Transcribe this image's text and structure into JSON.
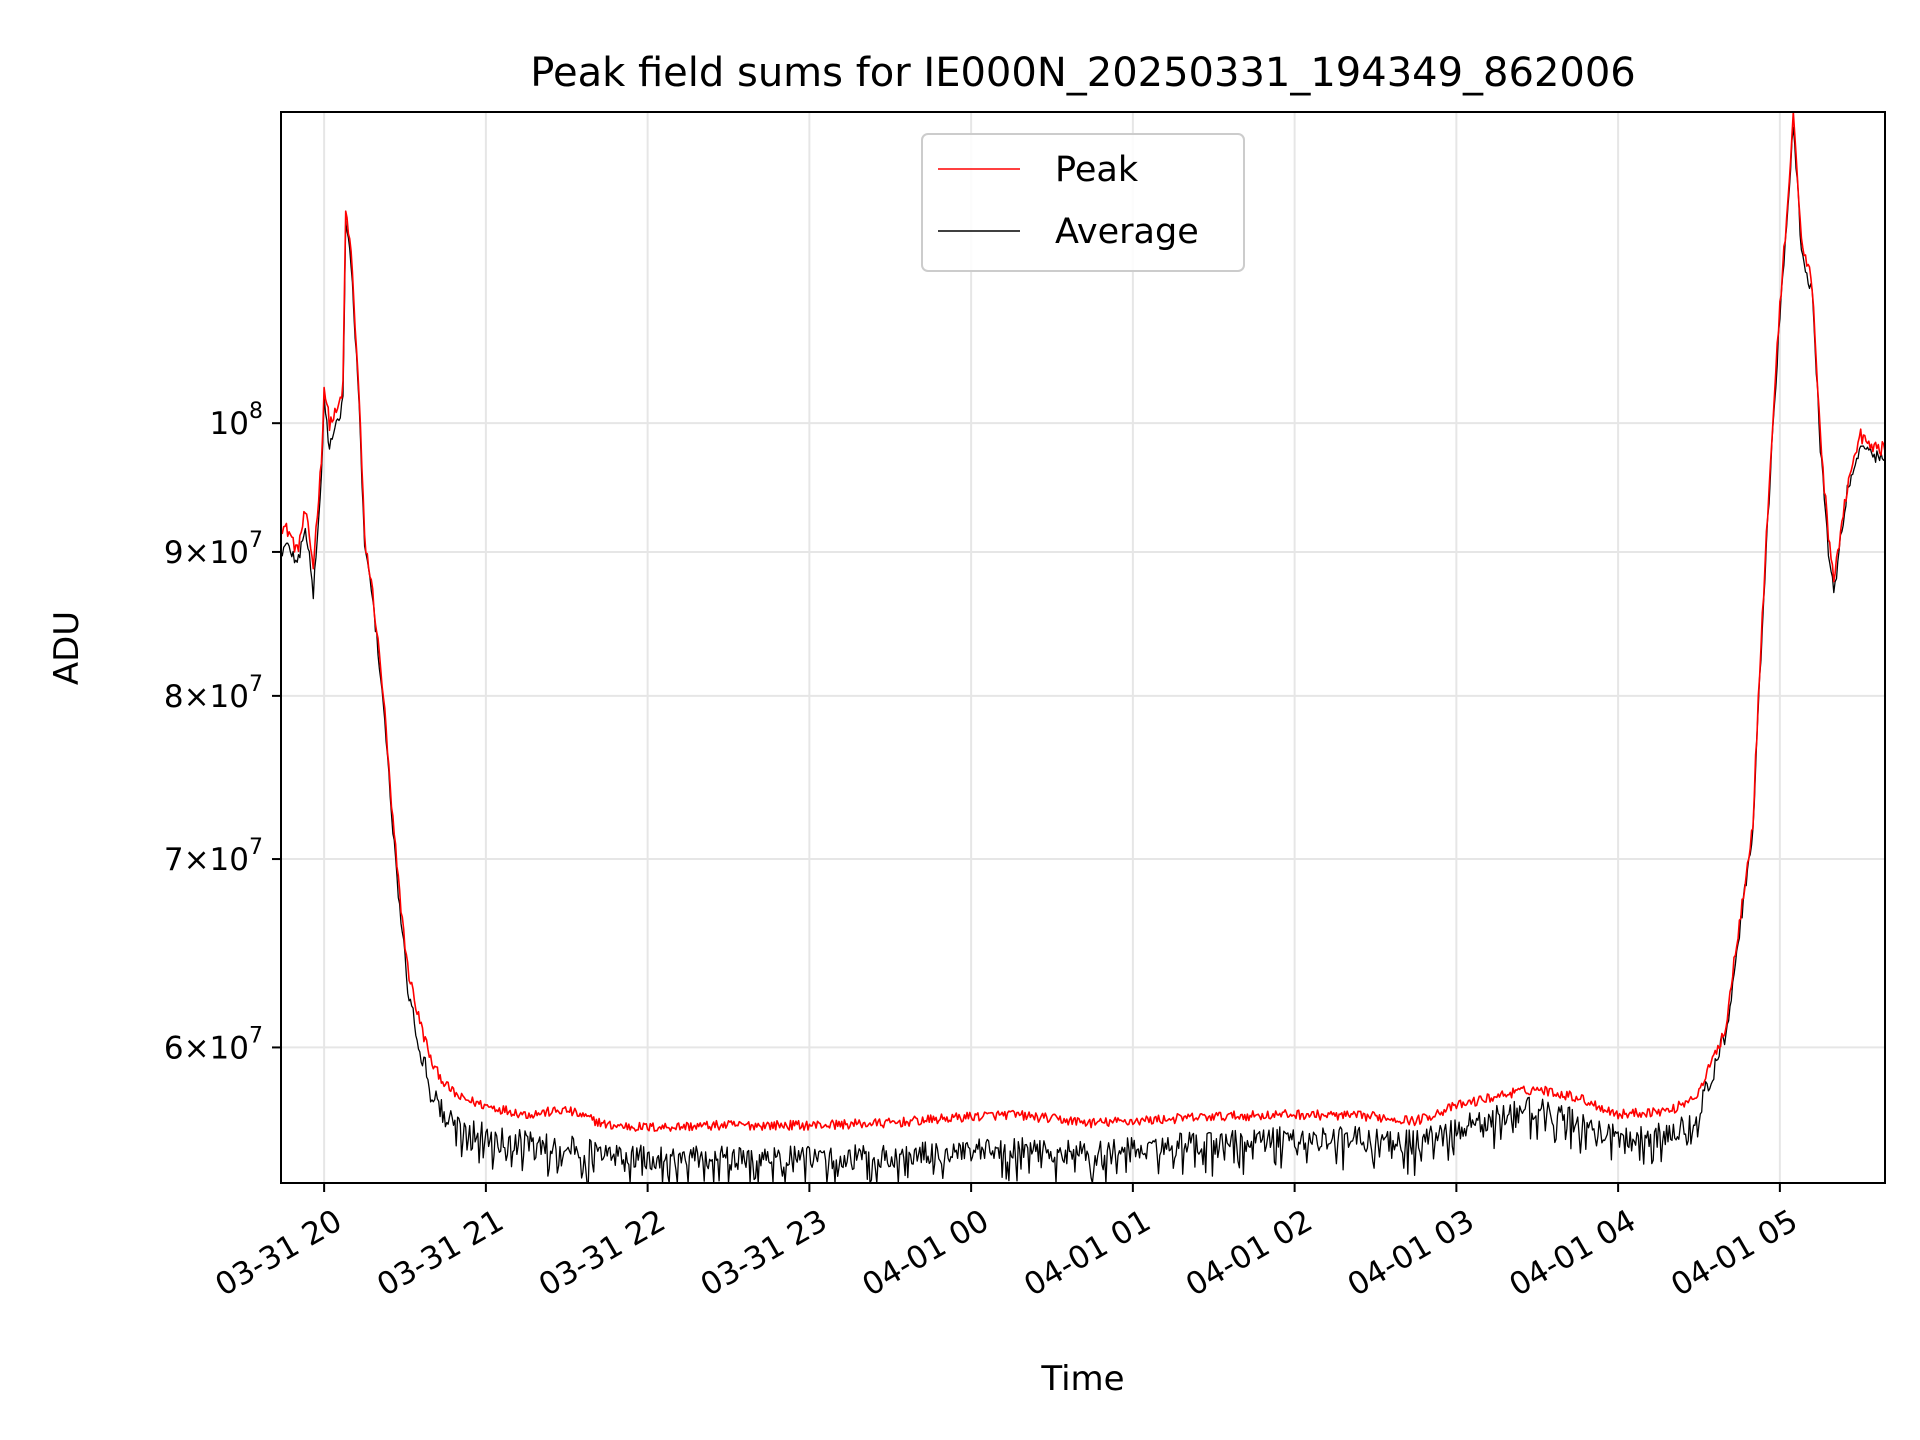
{
  "chart_data": {
    "type": "line",
    "title": "Peak field sums for IE000N_20250331_194349_862006",
    "xlabel": "Time",
    "ylabel": "ADU",
    "y_scale": "log",
    "x_range": [
      "03-31 19:44",
      "04-01 05:39"
    ],
    "ylim": [
      53700000,
      129000000
    ],
    "grid": true,
    "legend_position": "top-center",
    "x_ticks": [
      "03-31 20",
      "03-31 21",
      "03-31 22",
      "03-31 23",
      "04-01 00",
      "04-01 01",
      "04-01 02",
      "04-01 03",
      "04-01 04",
      "04-01 05"
    ],
    "y_ticks": [
      {
        "value": 60000000,
        "mantissa": "6",
        "base": "10",
        "exp": "7"
      },
      {
        "value": 70000000,
        "mantissa": "7",
        "base": "10",
        "exp": "7"
      },
      {
        "value": 80000000,
        "mantissa": "8",
        "base": "10",
        "exp": "7"
      },
      {
        "value": 90000000,
        "mantissa": "9",
        "base": "10",
        "exp": "7"
      },
      {
        "value": 100000000,
        "mantissa": "",
        "base": "10",
        "exp": "8"
      }
    ],
    "colors": {
      "peak": "#ff0000",
      "average": "#000000"
    },
    "series": [
      {
        "name": "Peak",
        "color": "#ff0000",
        "points": [
          [
            "03-31 19:44",
            92000000
          ],
          [
            "03-31 19:47",
            91500000
          ],
          [
            "03-31 19:50",
            90000000
          ],
          [
            "03-31 19:53",
            93000000
          ],
          [
            "03-31 19:56",
            89000000
          ],
          [
            "03-31 19:59",
            97000000
          ],
          [
            "03-31 20:00",
            103000000
          ],
          [
            "03-31 20:02",
            100000000
          ],
          [
            "03-31 20:05",
            101000000
          ],
          [
            "03-31 20:07",
            103000000
          ],
          [
            "03-31 20:08",
            119000000
          ],
          [
            "03-31 20:10",
            115000000
          ],
          [
            "03-31 20:13",
            102000000
          ],
          [
            "03-31 20:15",
            91000000
          ],
          [
            "03-31 20:18",
            87000000
          ],
          [
            "03-31 20:22",
            80000000
          ],
          [
            "03-31 20:25",
            73000000
          ],
          [
            "03-31 20:28",
            68000000
          ],
          [
            "03-31 20:31",
            64000000
          ],
          [
            "03-31 20:35",
            61500000
          ],
          [
            "03-31 20:40",
            59200000
          ],
          [
            "03-31 20:45",
            58200000
          ],
          [
            "03-31 20:50",
            57600000
          ],
          [
            "03-31 21:00",
            57200000
          ],
          [
            "03-31 21:15",
            56800000
          ],
          [
            "03-31 21:30",
            57000000
          ],
          [
            "03-31 21:45",
            56300000
          ],
          [
            "03-31 22:00",
            56200000
          ],
          [
            "03-31 22:30",
            56300000
          ],
          [
            "03-31 23:00",
            56300000
          ],
          [
            "03-31 23:30",
            56400000
          ],
          [
            "04-01 00:00",
            56700000
          ],
          [
            "04-01 00:15",
            56800000
          ],
          [
            "04-01 00:45",
            56400000
          ],
          [
            "04-01 01:00",
            56500000
          ],
          [
            "04-01 01:30",
            56700000
          ],
          [
            "04-01 02:00",
            56800000
          ],
          [
            "04-01 02:30",
            56700000
          ],
          [
            "04-01 02:45",
            56500000
          ],
          [
            "04-01 03:00",
            57200000
          ],
          [
            "04-01 03:20",
            57800000
          ],
          [
            "04-01 03:30",
            58000000
          ],
          [
            "04-01 03:45",
            57600000
          ],
          [
            "04-01 04:00",
            56800000
          ],
          [
            "04-01 04:20",
            57000000
          ],
          [
            "04-01 04:30",
            57800000
          ],
          [
            "04-01 04:40",
            61000000
          ],
          [
            "04-01 04:50",
            72000000
          ],
          [
            "04-01 05:00",
            110000000
          ],
          [
            "04-01 05:03",
            120000000
          ],
          [
            "04-01 05:05",
            129000000
          ],
          [
            "04-01 05:08",
            116000000
          ],
          [
            "04-01 05:12",
            112000000
          ],
          [
            "04-01 05:15",
            99000000
          ],
          [
            "04-01 05:18",
            91000000
          ],
          [
            "04-01 05:20",
            88000000
          ],
          [
            "04-01 05:25",
            95000000
          ],
          [
            "04-01 05:30",
            99000000
          ],
          [
            "04-01 05:34",
            98000000
          ],
          [
            "04-01 05:39",
            98000000
          ]
        ]
      },
      {
        "name": "Average",
        "color": "#000000",
        "points": [
          [
            "03-31 19:44",
            90000000
          ],
          [
            "03-31 19:47",
            90500000
          ],
          [
            "03-31 19:50",
            89000000
          ],
          [
            "03-31 19:53",
            92000000
          ],
          [
            "03-31 19:56",
            87000000
          ],
          [
            "03-31 19:59",
            95500000
          ],
          [
            "03-31 20:00",
            102000000
          ],
          [
            "03-31 20:02",
            98000000
          ],
          [
            "03-31 20:05",
            100000000
          ],
          [
            "03-31 20:07",
            102000000
          ],
          [
            "03-31 20:08",
            118000000
          ],
          [
            "03-31 20:10",
            114000000
          ],
          [
            "03-31 20:13",
            101000000
          ],
          [
            "03-31 20:15",
            90500000
          ],
          [
            "03-31 20:18",
            86500000
          ],
          [
            "03-31 20:22",
            79500000
          ],
          [
            "03-31 20:25",
            72500000
          ],
          [
            "03-31 20:28",
            67300000
          ],
          [
            "03-31 20:31",
            63000000
          ],
          [
            "03-31 20:35",
            60200000
          ],
          [
            "03-31 20:40",
            57800000
          ],
          [
            "03-31 20:45",
            56600000
          ],
          [
            "03-31 20:50",
            56100000
          ],
          [
            "03-31 21:00",
            55800000
          ],
          [
            "03-31 21:15",
            55400000
          ],
          [
            "03-31 21:30",
            55200000
          ],
          [
            "03-31 21:45",
            54900000
          ],
          [
            "03-31 22:00",
            54700000
          ],
          [
            "03-31 22:30",
            54700000
          ],
          [
            "03-31 23:00",
            54700000
          ],
          [
            "03-31 23:30",
            54800000
          ],
          [
            "04-01 00:00",
            55000000
          ],
          [
            "04-01 00:15",
            55100000
          ],
          [
            "04-01 00:45",
            54900000
          ],
          [
            "04-01 01:00",
            55100000
          ],
          [
            "04-01 01:30",
            55400000
          ],
          [
            "04-01 02:00",
            55600000
          ],
          [
            "04-01 02:30",
            55600000
          ],
          [
            "04-01 02:45",
            55400000
          ],
          [
            "04-01 03:00",
            56000000
          ],
          [
            "04-01 03:20",
            56800000
          ],
          [
            "04-01 03:30",
            57000000
          ],
          [
            "04-01 03:45",
            56400000
          ],
          [
            "04-01 04:00",
            55600000
          ],
          [
            "04-01 04:20",
            55800000
          ],
          [
            "04-01 04:30",
            56800000
          ],
          [
            "04-01 04:40",
            60500000
          ],
          [
            "04-01 04:50",
            71500000
          ],
          [
            "04-01 05:00",
            109000000
          ],
          [
            "04-01 05:03",
            119000000
          ],
          [
            "04-01 05:05",
            128000000
          ],
          [
            "04-01 05:08",
            115000000
          ],
          [
            "04-01 05:12",
            111000000
          ],
          [
            "04-01 05:15",
            98000000
          ],
          [
            "04-01 05:18",
            90000000
          ],
          [
            "04-01 05:20",
            87000000
          ],
          [
            "04-01 05:25",
            94500000
          ],
          [
            "04-01 05:30",
            98500000
          ],
          [
            "04-01 05:34",
            97500000
          ],
          [
            "04-01 05:39",
            97000000
          ]
        ]
      }
    ]
  }
}
